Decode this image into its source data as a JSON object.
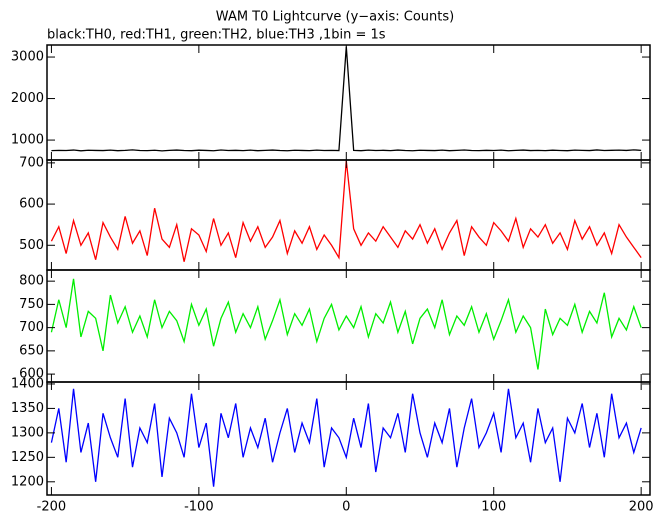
{
  "title": "WAM T0 Lightcurve (y−axis: Counts)",
  "subtitle": "black:TH0, red:TH1, green:TH2, blue:TH3 ,1bin = 1s",
  "chart_data": [
    {
      "type": "line",
      "x": [
        -200,
        -195,
        -190,
        -185,
        -180,
        -175,
        -170,
        -165,
        -160,
        -155,
        -150,
        -145,
        -140,
        -135,
        -130,
        -125,
        -120,
        -115,
        -110,
        -105,
        -100,
        -95,
        -90,
        -85,
        -80,
        -75,
        -70,
        -65,
        -60,
        -55,
        -50,
        -45,
        -40,
        -35,
        -30,
        -25,
        -20,
        -15,
        -10,
        -5,
        0,
        5,
        10,
        15,
        20,
        25,
        30,
        35,
        40,
        45,
        50,
        55,
        60,
        65,
        70,
        75,
        80,
        85,
        90,
        95,
        100,
        105,
        110,
        115,
        120,
        125,
        130,
        135,
        140,
        145,
        150,
        155,
        160,
        165,
        170,
        175,
        180,
        185,
        190,
        195,
        200
      ],
      "series": [
        {
          "color": "#000000",
          "values": [
            745,
            752,
            748,
            760,
            741,
            755,
            750,
            747,
            758,
            744,
            751,
            763,
            749,
            746,
            755,
            740,
            752,
            759,
            748,
            744,
            756,
            750,
            742,
            761,
            749,
            753,
            746,
            757,
            744,
            751,
            760,
            748,
            743,
            755,
            750,
            746,
            758,
            749,
            752,
            747,
            3250,
            751,
            744,
            757,
            749,
            753,
            746,
            760,
            748,
            742,
            755,
            750,
            747,
            758,
            744,
            752,
            761,
            749,
            745,
            754,
            748,
            757,
            743,
            751,
            759,
            747,
            752,
            746,
            756,
            749,
            744,
            758,
            751,
            747,
            762,
            748,
            753,
            757,
            750,
            764,
            752
          ]
        }
      ],
      "xlim": [
        -203,
        206
      ],
      "xticks": [
        -200,
        -100,
        0,
        100,
        200
      ],
      "ylim": [
        520,
        3290
      ],
      "yticks": [
        1000,
        2000,
        3000
      ]
    },
    {
      "type": "line",
      "x": [
        -200,
        -195,
        -190,
        -185,
        -180,
        -175,
        -170,
        -165,
        -160,
        -155,
        -150,
        -145,
        -140,
        -135,
        -130,
        -125,
        -120,
        -115,
        -110,
        -105,
        -100,
        -95,
        -90,
        -85,
        -80,
        -75,
        -70,
        -65,
        -60,
        -55,
        -50,
        -45,
        -40,
        -35,
        -30,
        -25,
        -20,
        -15,
        -10,
        -5,
        0,
        5,
        10,
        15,
        20,
        25,
        30,
        35,
        40,
        45,
        50,
        55,
        60,
        65,
        70,
        75,
        80,
        85,
        90,
        95,
        100,
        105,
        110,
        115,
        120,
        125,
        130,
        135,
        140,
        145,
        150,
        155,
        160,
        165,
        170,
        175,
        180,
        185,
        190,
        195,
        200
      ],
      "series": [
        {
          "color": "#ff0000",
          "values": [
            510,
            545,
            480,
            560,
            500,
            530,
            465,
            555,
            520,
            490,
            570,
            505,
            535,
            475,
            590,
            515,
            495,
            550,
            460,
            540,
            525,
            485,
            565,
            500,
            530,
            470,
            555,
            510,
            545,
            495,
            520,
            560,
            480,
            535,
            505,
            545,
            490,
            525,
            500,
            470,
            705,
            540,
            500,
            530,
            510,
            545,
            520,
            495,
            535,
            515,
            550,
            505,
            540,
            490,
            530,
            560,
            475,
            545,
            520,
            500,
            555,
            535,
            510,
            565,
            495,
            540,
            520,
            550,
            505,
            530,
            490,
            560,
            515,
            545,
            500,
            530,
            480,
            550,
            520,
            495,
            470
          ]
        }
      ],
      "xlim": [
        -203,
        206
      ],
      "xticks": [
        -200,
        -100,
        0,
        100,
        200
      ],
      "ylim": [
        440,
        707
      ],
      "yticks": [
        500,
        600,
        700
      ]
    },
    {
      "type": "line",
      "x": [
        -200,
        -195,
        -190,
        -185,
        -180,
        -175,
        -170,
        -165,
        -160,
        -155,
        -150,
        -145,
        -140,
        -135,
        -130,
        -125,
        -120,
        -115,
        -110,
        -105,
        -100,
        -95,
        -90,
        -85,
        -80,
        -75,
        -70,
        -65,
        -60,
        -55,
        -50,
        -45,
        -40,
        -35,
        -30,
        -25,
        -20,
        -15,
        -10,
        -5,
        0,
        5,
        10,
        15,
        20,
        25,
        30,
        35,
        40,
        45,
        50,
        55,
        60,
        65,
        70,
        75,
        80,
        85,
        90,
        95,
        100,
        105,
        110,
        115,
        120,
        125,
        130,
        135,
        140,
        145,
        150,
        155,
        160,
        165,
        170,
        175,
        180,
        185,
        190,
        195,
        200
      ],
      "series": [
        {
          "color": "#00ee00",
          "values": [
            690,
            760,
            700,
            805,
            680,
            735,
            720,
            650,
            770,
            710,
            745,
            690,
            725,
            680,
            760,
            700,
            735,
            715,
            670,
            750,
            705,
            740,
            660,
            720,
            755,
            690,
            730,
            700,
            745,
            675,
            715,
            760,
            685,
            730,
            705,
            740,
            670,
            720,
            750,
            695,
            725,
            700,
            745,
            680,
            730,
            710,
            755,
            690,
            735,
            665,
            720,
            740,
            700,
            760,
            685,
            725,
            705,
            745,
            690,
            730,
            675,
            715,
            760,
            690,
            725,
            700,
            610,
            740,
            685,
            720,
            705,
            750,
            690,
            735,
            710,
            775,
            680,
            720,
            695,
            745,
            700
          ]
        }
      ],
      "xlim": [
        -203,
        206
      ],
      "xticks": [
        -200,
        -100,
        0,
        100,
        200
      ],
      "ylim": [
        583,
        824
      ],
      "yticks": [
        600,
        650,
        700,
        750,
        800
      ]
    },
    {
      "type": "line",
      "x": [
        -200,
        -195,
        -190,
        -185,
        -180,
        -175,
        -170,
        -165,
        -160,
        -155,
        -150,
        -145,
        -140,
        -135,
        -130,
        -125,
        -120,
        -115,
        -110,
        -105,
        -100,
        -95,
        -90,
        -85,
        -80,
        -75,
        -70,
        -65,
        -60,
        -55,
        -50,
        -45,
        -40,
        -35,
        -30,
        -25,
        -20,
        -15,
        -10,
        -5,
        0,
        5,
        10,
        15,
        20,
        25,
        30,
        35,
        40,
        45,
        50,
        55,
        60,
        65,
        70,
        75,
        80,
        85,
        90,
        95,
        100,
        105,
        110,
        115,
        120,
        125,
        130,
        135,
        140,
        145,
        150,
        155,
        160,
        165,
        170,
        175,
        180,
        185,
        190,
        195,
        200
      ],
      "series": [
        {
          "color": "#0000ff",
          "values": [
            1280,
            1350,
            1240,
            1390,
            1260,
            1320,
            1200,
            1340,
            1290,
            1250,
            1370,
            1230,
            1310,
            1280,
            1360,
            1210,
            1330,
            1300,
            1250,
            1380,
            1270,
            1320,
            1190,
            1340,
            1290,
            1360,
            1250,
            1310,
            1270,
            1330,
            1240,
            1300,
            1350,
            1260,
            1320,
            1280,
            1370,
            1230,
            1310,
            1290,
            1250,
            1330,
            1270,
            1360,
            1220,
            1310,
            1290,
            1340,
            1260,
            1380,
            1300,
            1250,
            1320,
            1280,
            1350,
            1230,
            1310,
            1370,
            1270,
            1300,
            1340,
            1260,
            1390,
            1290,
            1320,
            1240,
            1350,
            1280,
            1310,
            1200,
            1330,
            1300,
            1360,
            1270,
            1340,
            1250,
            1380,
            1290,
            1320,
            1260,
            1310
          ]
        }
      ],
      "xlim": [
        -203,
        206
      ],
      "xticks": [
        -200,
        -100,
        0,
        100,
        200
      ],
      "ylim": [
        1173,
        1404
      ],
      "yticks": [
        1200,
        1250,
        1300,
        1350,
        1400
      ]
    }
  ]
}
